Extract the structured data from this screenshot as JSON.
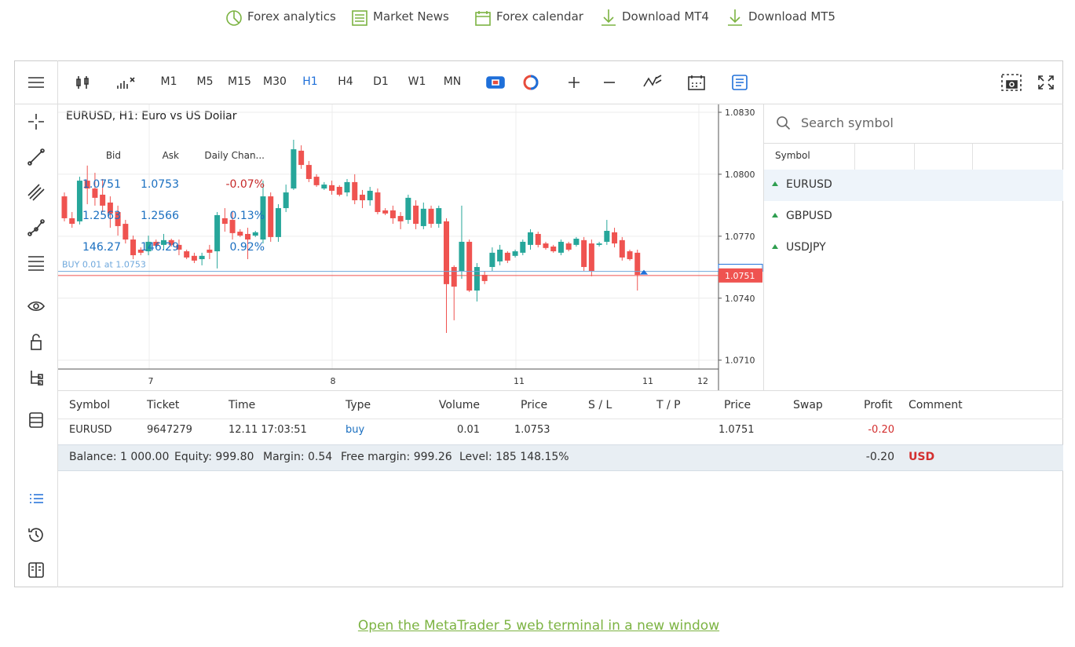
{
  "nav": [
    "Forex analytics",
    "Market News",
    "Forex calendar",
    "Download MT4",
    "Download MT5"
  ],
  "toolbar": {
    "timeframes": [
      "M1",
      "M5",
      "M15",
      "M30",
      "H1",
      "H4",
      "D1",
      "W1",
      "MN"
    ],
    "active": "H1"
  },
  "chart": {
    "title": "EURUSD, H1: Euro vs US Dollar",
    "type": "candlestick",
    "ylim": [
      1.07057,
      1.08338
    ],
    "yticks": [
      {
        "value": 1.083,
        "label": "1.0830"
      },
      {
        "value": 1.08,
        "label": "1.0800"
      },
      {
        "value": 1.077,
        "label": "1.0770"
      },
      {
        "value": 1.074,
        "label": "1.0740"
      },
      {
        "value": 1.071,
        "label": "1.0710"
      }
    ],
    "xticks": [
      "7",
      "8",
      "11",
      "11",
      "12"
    ],
    "up_color": "#26a69a",
    "down_color": "#ef5350",
    "candles": {
      "open": [
        1.07893,
        1.07787,
        1.07772,
        1.07969,
        1.07931,
        1.07901,
        1.07863,
        1.07817,
        1.0776,
        1.07684,
        1.07635,
        1.07627,
        1.07673,
        1.07658,
        1.07681,
        1.07658,
        1.07627,
        1.07605,
        1.07589,
        1.07635,
        1.07627,
        1.07787,
        1.07779,
        1.07722,
        1.07711,
        1.07703,
        1.07684,
        1.07893,
        1.07696,
        1.07836,
        1.07931,
        1.08114,
        1.08045,
        1.07988,
        1.07931,
        1.07947,
        1.07939,
        1.07912,
        1.07962,
        1.07901,
        1.07874,
        1.07912,
        1.07825,
        1.07825,
        1.07798,
        1.07779,
        1.07848,
        1.07749,
        1.07833,
        1.0776,
        1.07772,
        1.07551,
        1.07532,
        1.07673,
        1.07437,
        1.07513,
        1.07551,
        1.07578,
        1.0762,
        1.07605,
        1.0762,
        1.07658,
        1.07711,
        1.07665,
        1.0765,
        1.0762,
        1.07665,
        1.07658,
        1.07681,
        1.07665,
        1.07658,
        1.07673,
        1.07719,
        1.07681,
        1.07627,
        1.0762
      ],
      "high": [
        1.07912,
        1.07817,
        1.07988,
        1.08042,
        1.08007,
        1.07977,
        1.07893,
        1.07848,
        1.07779,
        1.07703,
        1.07646,
        1.07703,
        1.07684,
        1.07711,
        1.07688,
        1.07684,
        1.07635,
        1.0762,
        1.0762,
        1.07658,
        1.07817,
        1.07836,
        1.07817,
        1.07734,
        1.07741,
        1.07726,
        1.07969,
        1.07912,
        1.07855,
        1.0795,
        1.08167,
        1.0814,
        1.08064,
        1.08,
        1.07962,
        1.07969,
        1.07947,
        1.07977,
        1.08,
        1.07924,
        1.07939,
        1.07931,
        1.07836,
        1.07848,
        1.07817,
        1.07901,
        1.07874,
        1.07863,
        1.07848,
        1.07848,
        1.07787,
        1.07559,
        1.07848,
        1.07684,
        1.0757,
        1.07532,
        1.07646,
        1.07658,
        1.07627,
        1.07635,
        1.07684,
        1.07734,
        1.07722,
        1.07673,
        1.07658,
        1.07684,
        1.07673,
        1.07696,
        1.07696,
        1.07684,
        1.07673,
        1.07779,
        1.07741,
        1.07696,
        1.07635,
        1.07635
      ],
      "low": [
        1.07772,
        1.07741,
        1.07757,
        1.07855,
        1.07848,
        1.07817,
        1.07741,
        1.07703,
        1.07665,
        1.07589,
        1.07608,
        1.07608,
        1.07643,
        1.07635,
        1.0765,
        1.07608,
        1.07589,
        1.0757,
        1.07559,
        1.07589,
        1.07544,
        1.07722,
        1.07684,
        1.07696,
        1.07589,
        1.07696,
        1.07665,
        1.07673,
        1.07673,
        1.07817,
        1.07924,
        1.08026,
        1.07962,
        1.07939,
        1.07924,
        1.07901,
        1.07893,
        1.07893,
        1.07855,
        1.07836,
        1.07848,
        1.07806,
        1.07802,
        1.0776,
        1.07734,
        1.0776,
        1.07734,
        1.07734,
        1.07741,
        1.07741,
        1.07232,
        1.07293,
        1.07494,
        1.0743,
        1.07384,
        1.07468,
        1.07532,
        1.07559,
        1.0757,
        1.07597,
        1.07608,
        1.07635,
        1.07646,
        1.07635,
        1.0762,
        1.07608,
        1.07627,
        1.0765,
        1.07532,
        1.07506,
        1.0765,
        1.07658,
        1.07646,
        1.07582,
        1.07582,
        1.07437
      ],
      "close": [
        1.07787,
        1.0776,
        1.07969,
        1.07931,
        1.07886,
        1.07848,
        1.0781,
        1.07749,
        1.07684,
        1.07608,
        1.0762,
        1.07673,
        1.07654,
        1.07681,
        1.07658,
        1.07635,
        1.07597,
        1.07582,
        1.07605,
        1.0762,
        1.07802,
        1.0776,
        1.07715,
        1.07703,
        1.07684,
        1.07719,
        1.07893,
        1.07696,
        1.07836,
        1.07912,
        1.08121,
        1.08045,
        1.07977,
        1.07947,
        1.0795,
        1.0792,
        1.07901,
        1.07962,
        1.07874,
        1.07874,
        1.0792,
        1.07817,
        1.0781,
        1.07787,
        1.07772,
        1.07886,
        1.0776,
        1.07833,
        1.0776,
        1.07836,
        1.07468,
        1.07456,
        1.07673,
        1.07437,
        1.07551,
        1.07483,
        1.0762,
        1.07635,
        1.07582,
        1.07627,
        1.07673,
        1.07719,
        1.07658,
        1.07643,
        1.07627,
        1.07673,
        1.07635,
        1.07688,
        1.07551,
        1.07532,
        1.07665,
        1.07726,
        1.07665,
        1.07597,
        1.07589,
        1.07513
      ]
    },
    "buy_line": {
      "label": "BUY 0.01 at 1.0753",
      "price": 1.0753
    },
    "price_line": {
      "value": 1.0751,
      "label": "1.0751"
    }
  },
  "symbols": {
    "search": "Search symbol",
    "columns": [
      "Symbol",
      "Bid",
      "Ask",
      "Daily Chan..."
    ],
    "rows": [
      {
        "symbol": "EURUSD",
        "bid": "1.0751",
        "ask": "1.0753",
        "change": "-0.07%"
      },
      {
        "symbol": "GBPUSD",
        "bid": "1.2563",
        "ask": "1.2566",
        "change": "0.13%"
      },
      {
        "symbol": "USDJPY",
        "bid": "146.27",
        "ask": "146.29",
        "change": "0.92%"
      }
    ]
  },
  "trades": {
    "columns": [
      "Symbol",
      "Ticket",
      "Time",
      "Type",
      "Volume",
      "Price",
      "S / L",
      "T / P",
      "Price",
      "Swap",
      "Profit",
      "Comment"
    ],
    "rows": [
      {
        "symbol": "EURUSD",
        "ticket": "9647279",
        "time": "12.11 17:03:51",
        "type": "buy",
        "volume": "0.01",
        "price": "1.0753",
        "current_price": "1.0751",
        "profit": "-0.20"
      }
    ]
  },
  "summary": {
    "balance": "Balance: 1 000.00",
    "equity": "Equity: 999.80",
    "margin": "Margin: 0.54",
    "free_margin": "Free margin: 999.26",
    "level": "Level: 185 148.15%",
    "profit": "-0.20",
    "currency": "USD"
  },
  "footer_link": "Open the MetaTrader 5 web terminal in a new window"
}
